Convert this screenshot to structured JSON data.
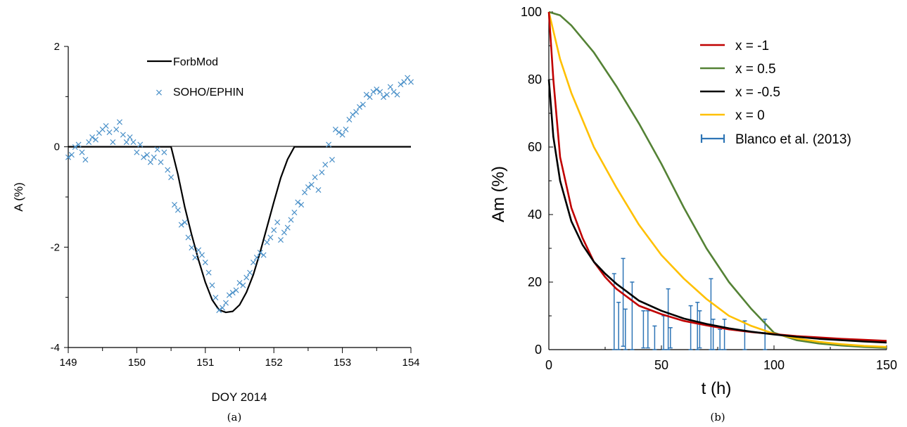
{
  "chart_data": [
    {
      "type": "line",
      "xlabel": "DOY 2014",
      "ylabel": "A (%)",
      "xlim": [
        149,
        154
      ],
      "ylim": [
        -4,
        2
      ],
      "x_ticks": [
        149,
        150,
        151,
        152,
        153,
        154
      ],
      "y_ticks": [
        -4,
        -2,
        0,
        2
      ],
      "caption": "(a)",
      "legend_placement": "top-center",
      "series": [
        {
          "name": "ForbMod",
          "style": "line",
          "color": "#000000",
          "x": [
            149,
            150.5,
            150.6,
            150.7,
            150.8,
            150.9,
            151.0,
            151.1,
            151.2,
            151.3,
            151.4,
            151.5,
            151.6,
            151.7,
            151.8,
            151.9,
            152.0,
            152.1,
            152.2,
            152.3,
            154
          ],
          "y": [
            0,
            0,
            -0.55,
            -1.2,
            -1.75,
            -2.25,
            -2.7,
            -3.05,
            -3.25,
            -3.3,
            -3.28,
            -3.15,
            -2.9,
            -2.55,
            -2.1,
            -1.6,
            -1.1,
            -0.62,
            -0.25,
            0,
            0
          ]
        },
        {
          "name": "SOHO/EPHIN",
          "style": "marker-x",
          "color": "#4a90c8",
          "x": [
            149.0,
            149.05,
            149.1,
            149.15,
            149.2,
            149.25,
            149.3,
            149.35,
            149.4,
            149.45,
            149.5,
            149.55,
            149.6,
            149.65,
            149.7,
            149.75,
            149.8,
            149.85,
            149.9,
            149.95,
            150.0,
            150.05,
            150.1,
            150.15,
            150.2,
            150.25,
            150.3,
            150.35,
            150.4,
            150.45,
            150.5,
            150.55,
            150.6,
            150.65,
            150.7,
            150.75,
            150.8,
            150.85,
            150.9,
            150.95,
            151.0,
            151.05,
            151.1,
            151.15,
            151.2,
            151.25,
            151.3,
            151.35,
            151.4,
            151.45,
            151.5,
            151.55,
            151.6,
            151.65,
            151.7,
            151.75,
            151.8,
            151.85,
            151.9,
            151.95,
            152.0,
            152.05,
            152.1,
            152.15,
            152.2,
            152.25,
            152.3,
            152.35,
            152.4,
            152.45,
            152.5,
            152.55,
            152.6,
            152.65,
            152.7,
            152.75,
            152.8,
            152.85,
            152.9,
            152.95,
            153.0,
            153.05,
            153.1,
            153.15,
            153.2,
            153.25,
            153.3,
            153.35,
            153.4,
            153.45,
            153.5,
            153.55,
            153.6,
            153.65,
            153.7,
            153.75,
            153.8,
            153.85,
            153.9,
            153.95,
            154.0
          ],
          "y": [
            -0.2,
            -0.15,
            0.0,
            0.05,
            -0.1,
            -0.25,
            0.1,
            0.2,
            0.15,
            0.28,
            0.35,
            0.42,
            0.3,
            0.1,
            0.35,
            0.5,
            0.25,
            0.1,
            0.2,
            0.1,
            -0.1,
            0.05,
            -0.2,
            -0.15,
            -0.3,
            -0.2,
            -0.05,
            -0.3,
            -0.1,
            -0.45,
            -0.6,
            -1.15,
            -1.25,
            -1.55,
            -1.5,
            -1.8,
            -2.0,
            -2.2,
            -2.05,
            -2.15,
            -2.3,
            -2.5,
            -2.75,
            -3.0,
            -3.25,
            -3.2,
            -3.1,
            -2.95,
            -2.9,
            -2.85,
            -2.7,
            -2.75,
            -2.6,
            -2.5,
            -2.3,
            -2.2,
            -2.1,
            -2.15,
            -1.9,
            -1.8,
            -1.65,
            -1.5,
            -1.85,
            -1.7,
            -1.6,
            -1.45,
            -1.3,
            -1.1,
            -1.15,
            -0.9,
            -0.8,
            -0.75,
            -0.6,
            -0.85,
            -0.5,
            -0.35,
            0.05,
            -0.25,
            0.35,
            0.3,
            0.25,
            0.35,
            0.55,
            0.65,
            0.7,
            0.8,
            0.85,
            1.05,
            1.0,
            1.1,
            1.15,
            1.1,
            1.0,
            1.05,
            1.2,
            1.1,
            1.05,
            1.25,
            1.3,
            1.38,
            1.3
          ]
        }
      ]
    },
    {
      "type": "line",
      "xlabel": "t (h)",
      "ylabel": "Am (%)",
      "xlim": [
        0,
        150
      ],
      "ylim": [
        0,
        100
      ],
      "x_ticks": [
        0,
        50,
        100,
        150
      ],
      "y_ticks": [
        0,
        20,
        40,
        60,
        80,
        100
      ],
      "caption": "(b)",
      "legend_placement": "top-right",
      "series": [
        {
          "name": "x = -1",
          "color": "#c00000",
          "x": [
            0,
            2,
            5,
            10,
            15,
            20,
            25,
            30,
            40,
            50,
            60,
            70,
            80,
            90,
            100,
            110,
            120,
            130,
            140,
            150
          ],
          "y": [
            100,
            80,
            57,
            42,
            33,
            26,
            21.5,
            18,
            13,
            10.5,
            8.5,
            7.2,
            6.0,
            5.2,
            4.6,
            4.0,
            3.6,
            3.2,
            2.9,
            2.6
          ]
        },
        {
          "name": "x = 0.5",
          "color": "#548235",
          "x": [
            0,
            5,
            10,
            20,
            30,
            40,
            50,
            60,
            70,
            80,
            90,
            100,
            110,
            120,
            130,
            140,
            150
          ],
          "y": [
            100,
            99,
            96,
            88,
            78,
            67,
            55,
            42,
            30,
            20,
            12,
            5,
            2.8,
            1.8,
            1.2,
            0.8,
            0.5
          ]
        },
        {
          "name": "x = -0.5",
          "color": "#000000",
          "x": [
            0,
            2,
            5,
            10,
            15,
            20,
            25,
            30,
            40,
            50,
            60,
            70,
            80,
            90,
            100,
            110,
            120,
            130,
            140,
            150
          ],
          "y": [
            80,
            63,
            50,
            38,
            31,
            26,
            22.5,
            19.5,
            14.5,
            11.5,
            9.2,
            7.6,
            6.3,
            5.3,
            4.5,
            3.8,
            3.2,
            2.8,
            2.4,
            2.1
          ]
        },
        {
          "name": "x = 0",
          "color": "#ffc000",
          "x": [
            0,
            5,
            10,
            20,
            30,
            40,
            50,
            60,
            70,
            80,
            90,
            100,
            110,
            120,
            130,
            140,
            150
          ],
          "y": [
            100,
            86,
            76,
            60,
            48,
            37,
            28,
            21,
            15,
            10,
            7,
            4.7,
            3.3,
            2.3,
            1.6,
            1.1,
            0.8
          ]
        },
        {
          "name": "Blanco et al. (2013)",
          "style": "error-bars",
          "color": "#2e75b6",
          "x": [
            29,
            31,
            33,
            34,
            37,
            42,
            44,
            47,
            51,
            53,
            54,
            63,
            66,
            67,
            72,
            73,
            76,
            78,
            87,
            96
          ],
          "y": [
            11,
            7,
            14,
            6,
            10,
            6,
            6,
            3.5,
            5,
            9,
            3.5,
            6.5,
            7,
            6,
            10.5,
            4.5,
            3,
            4.5,
            4,
            4.5
          ],
          "err": [
            11.5,
            7,
            13,
            6,
            10,
            5.5,
            5.5,
            3.5,
            5,
            9,
            3,
            6.5,
            7,
            5.5,
            10.5,
            4.5,
            3,
            4.5,
            4.5,
            4.5
          ]
        }
      ]
    }
  ]
}
